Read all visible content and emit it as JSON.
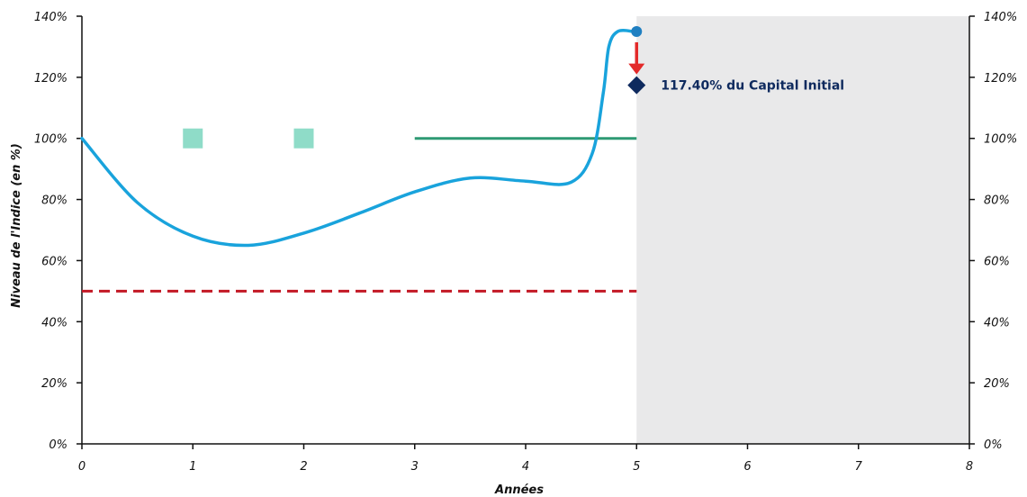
{
  "chart_data": {
    "type": "line",
    "xlabel": "Années",
    "ylabel": "Niveau de l'Indice (en %)",
    "xlim": [
      0,
      8
    ],
    "ylim": [
      0,
      140
    ],
    "x_ticks": [
      "0",
      "1",
      "2",
      "3",
      "4",
      "5",
      "6",
      "7",
      "8"
    ],
    "y_ticks": [
      "0%",
      "20%",
      "40%",
      "60%",
      "80%",
      "100%",
      "120%",
      "140%"
    ],
    "shaded_region": {
      "x_from": 5,
      "x_to": 8,
      "color": "#e9e9ea"
    },
    "series": [
      {
        "kind": "index-path",
        "color": "#19a3dc",
        "points": [
          [
            0,
            100
          ],
          [
            0.5,
            79
          ],
          [
            1,
            68
          ],
          [
            1.5,
            65
          ],
          [
            2,
            69
          ],
          [
            2.5,
            75.5
          ],
          [
            3,
            82.5
          ],
          [
            3.5,
            87
          ],
          [
            4,
            86
          ],
          [
            4.4,
            85.5
          ],
          [
            4.6,
            95
          ],
          [
            4.7,
            115
          ],
          [
            4.75,
            130
          ],
          [
            4.83,
            135
          ],
          [
            4.97,
            135
          ]
        ]
      },
      {
        "kind": "autocall-barrier-markers",
        "color": "#8fdcc8",
        "points": [
          [
            1,
            100
          ],
          [
            2,
            100
          ]
        ]
      },
      {
        "kind": "barrier-line",
        "color": "#2e9a74",
        "points": [
          [
            3,
            100
          ],
          [
            5,
            100
          ]
        ]
      },
      {
        "kind": "protection-barrier",
        "color": "#c31925",
        "style": "dashed",
        "points": [
          [
            0,
            50
          ],
          [
            5,
            50
          ]
        ]
      }
    ],
    "final_point": {
      "x": 5,
      "y": 135,
      "color": "#1f7fc1"
    },
    "arrow_color": "#e32a2a",
    "annotation": {
      "x": 5,
      "y": 117.4,
      "text": "117.40% du Capital Initial",
      "color": "#0e2a5e"
    }
  }
}
